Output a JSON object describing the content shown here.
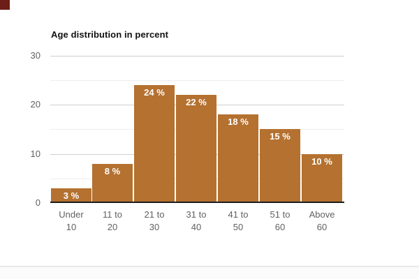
{
  "page": {
    "background": "#ffffff"
  },
  "corner_mark": {
    "color": "#6d1e16"
  },
  "chart_data": {
    "type": "bar",
    "title": "Age distribution in percent",
    "categories": [
      "Under 10",
      "11 to 20",
      "21 to 30",
      "31 to 40",
      "41 to 50",
      "51 to 60",
      "Above 60"
    ],
    "categories_lines": [
      [
        "Under",
        "10"
      ],
      [
        "11 to",
        "20"
      ],
      [
        "21 to",
        "30"
      ],
      [
        "31 to",
        "40"
      ],
      [
        "41 to",
        "50"
      ],
      [
        "51 to",
        "60"
      ],
      [
        "Above",
        "60"
      ]
    ],
    "values": [
      3,
      8,
      24,
      22,
      18,
      15,
      10
    ],
    "value_labels": [
      "3 %",
      "8 %",
      "24 %",
      "22 %",
      "18 %",
      "15 %",
      "10 %"
    ],
    "xlabel": "",
    "ylabel": "",
    "ylim": [
      0,
      30
    ],
    "yticks_major": [
      0,
      10,
      20,
      30
    ],
    "yticks_minor": [
      5,
      15,
      25
    ],
    "grid": true,
    "legend": "none",
    "bar_color": "#b47130",
    "annotation_color": "#ffffff",
    "title_color": "#111111",
    "axis_label_color": "#616161",
    "major_grid_color": "#cfcfcf",
    "minor_grid_color": "#ededed",
    "baseline_color": "#1c1c1c"
  },
  "footer": {
    "divider_color": "#e9e9e9"
  }
}
